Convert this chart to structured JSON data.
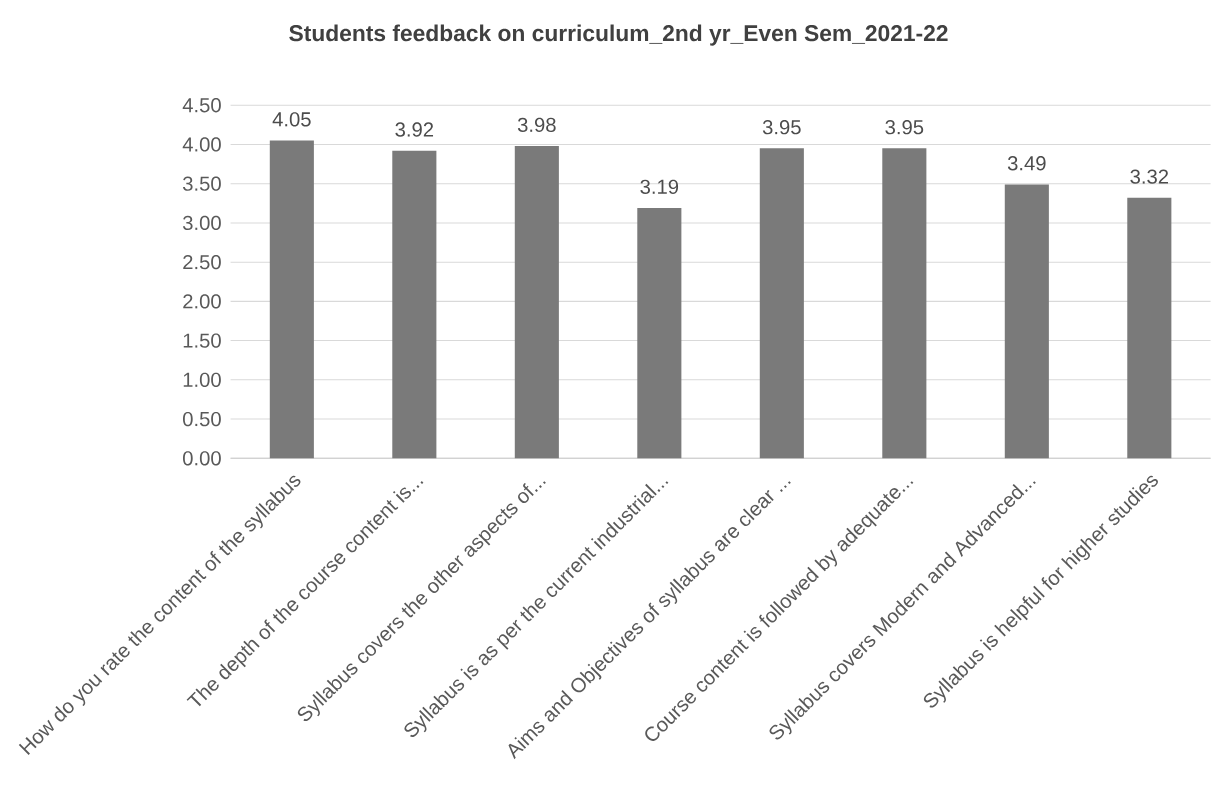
{
  "chart_data": {
    "type": "bar",
    "title": "Students feedback on curriculum_2nd yr_Even Sem_2021-22",
    "categories": [
      "How do you rate the content of the syllabus",
      "The depth of the course content is...",
      "Syllabus covers the other aspects of...",
      "Syllabus is as per the current industrial...",
      "Aims and Objectives of syllabus are clear ...",
      "Course content is followed by adequate...",
      "Syllabus covers Modern and Advanced...",
      "Syllabus is helpful for higher studies"
    ],
    "values": [
      4.05,
      3.92,
      3.98,
      3.19,
      3.95,
      3.95,
      3.49,
      3.32
    ],
    "color": "#7a7a7a",
    "data_labels": true,
    "grid": "y",
    "ylim": [
      0,
      4.5
    ],
    "yticks": [
      {
        "value": 0,
        "label": "0.00"
      },
      {
        "value": 0.5,
        "label": "0.50"
      },
      {
        "value": 1,
        "label": "1.00"
      },
      {
        "value": 1.5,
        "label": "1.50"
      },
      {
        "value": 2,
        "label": "2.00"
      },
      {
        "value": 2.5,
        "label": "2.50"
      },
      {
        "value": 3,
        "label": "3.00"
      },
      {
        "value": 3.5,
        "label": "3.50"
      },
      {
        "value": 4,
        "label": "4.00"
      },
      {
        "value": 4.5,
        "label": "4.50"
      }
    ]
  }
}
